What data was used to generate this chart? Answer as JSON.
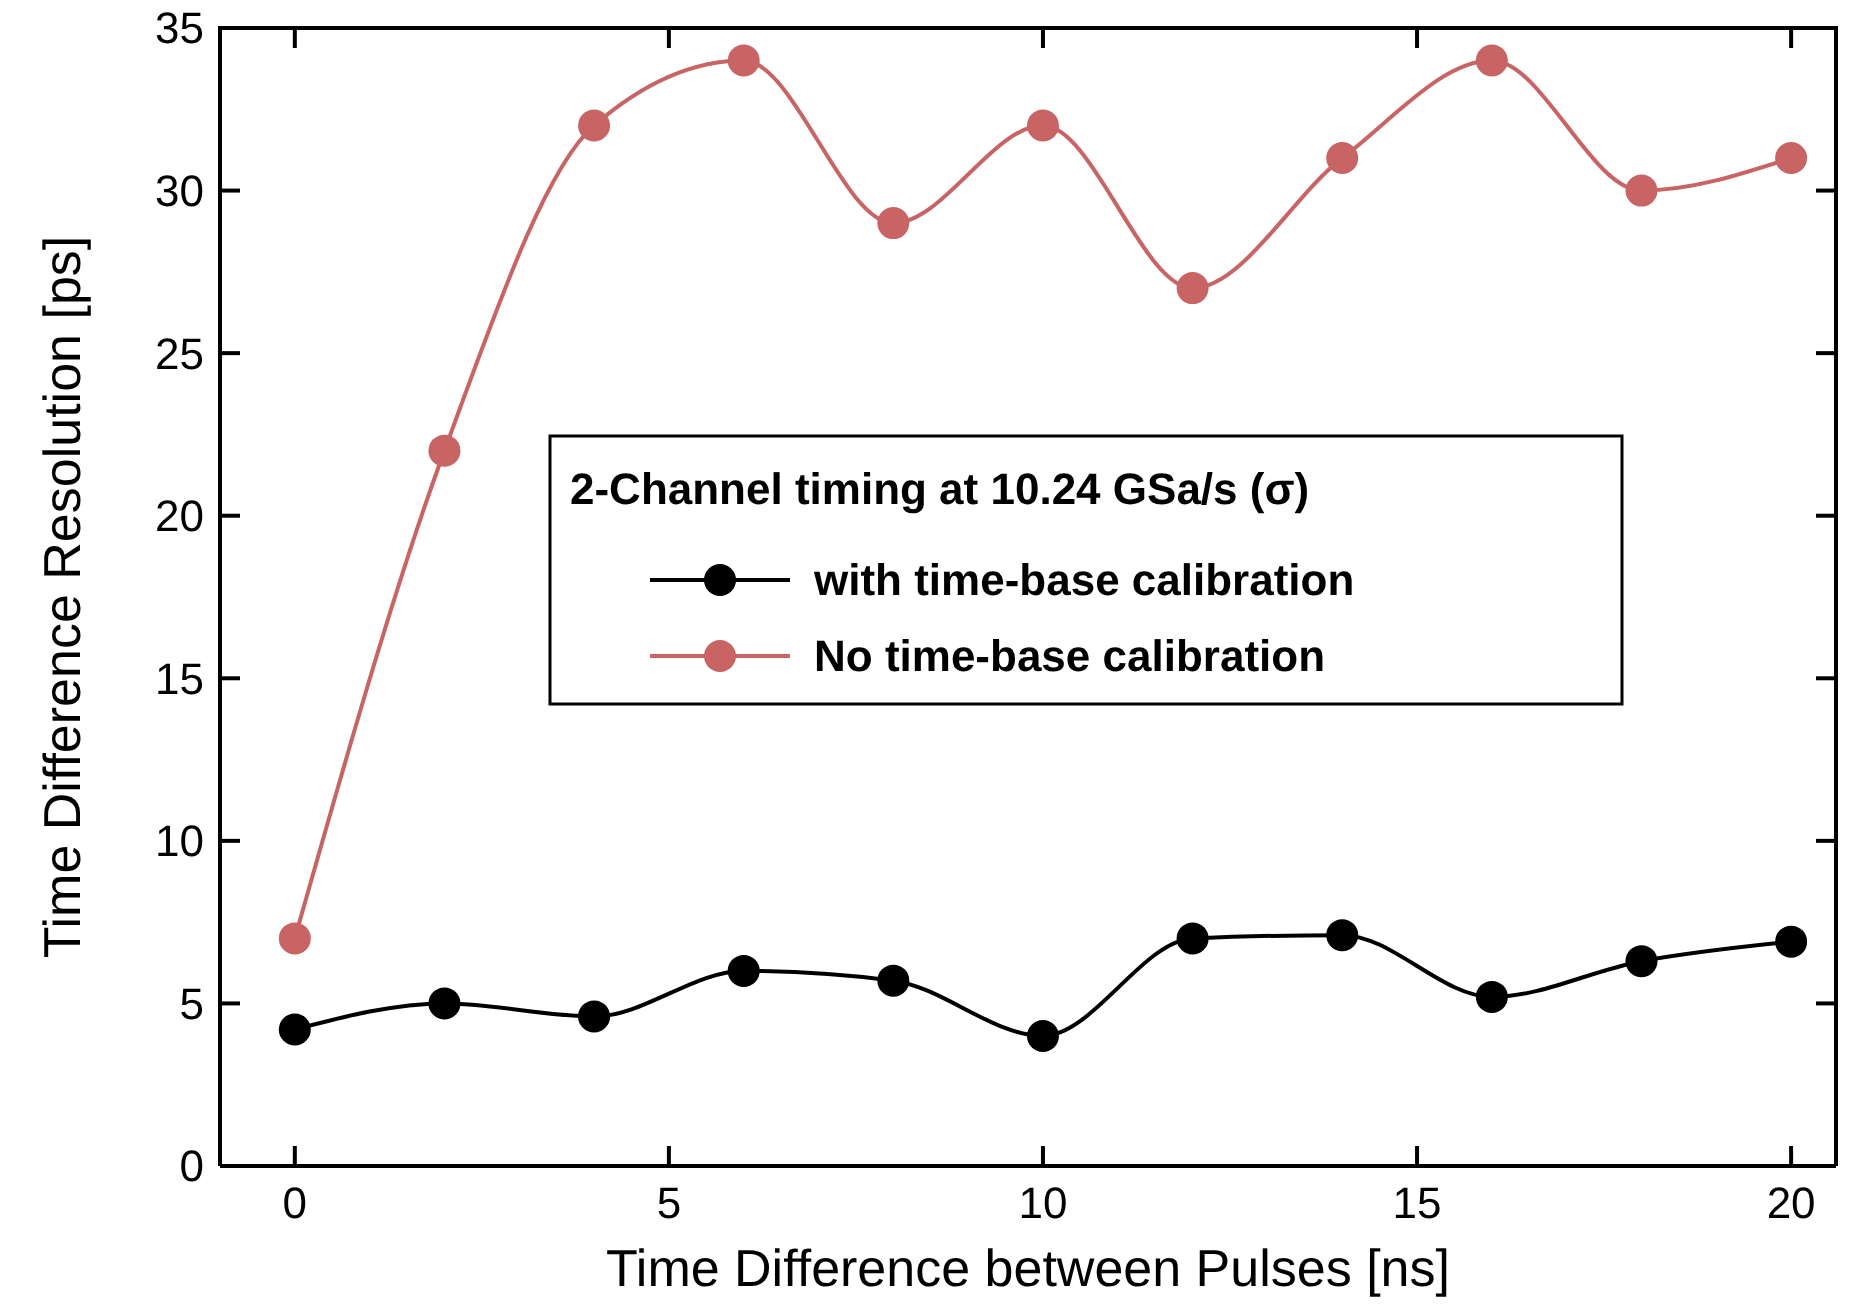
{
  "chart_data": {
    "type": "line",
    "xlabel": "Time Difference between Pulses [ns]",
    "ylabel": "Time Difference Resolution [ps]",
    "legend_title": "2-Channel timing at 10.24 GSa/s (σ)",
    "legend": "right",
    "marker": "circle",
    "line_style": "solid",
    "grid": false,
    "x": [
      0,
      2,
      4,
      6,
      8,
      10,
      12,
      14,
      16,
      18,
      20
    ],
    "series": [
      {
        "name": "with time-base calibration",
        "color": "#000000",
        "values": [
          4.2,
          5.0,
          4.6,
          6.0,
          5.7,
          4.0,
          7.0,
          7.1,
          5.2,
          6.3,
          6.9
        ]
      },
      {
        "name": "No time-base calibration",
        "color": "#c86464",
        "values": [
          7,
          22,
          32,
          34,
          29,
          32,
          27,
          31,
          34,
          30,
          31
        ]
      }
    ],
    "xlim": [
      -1,
      20.6
    ],
    "xticks": [
      0,
      5,
      10,
      15,
      20
    ],
    "ylim": [
      0,
      35
    ],
    "yticks": [
      0,
      5,
      10,
      15,
      20,
      25,
      30,
      35
    ]
  }
}
